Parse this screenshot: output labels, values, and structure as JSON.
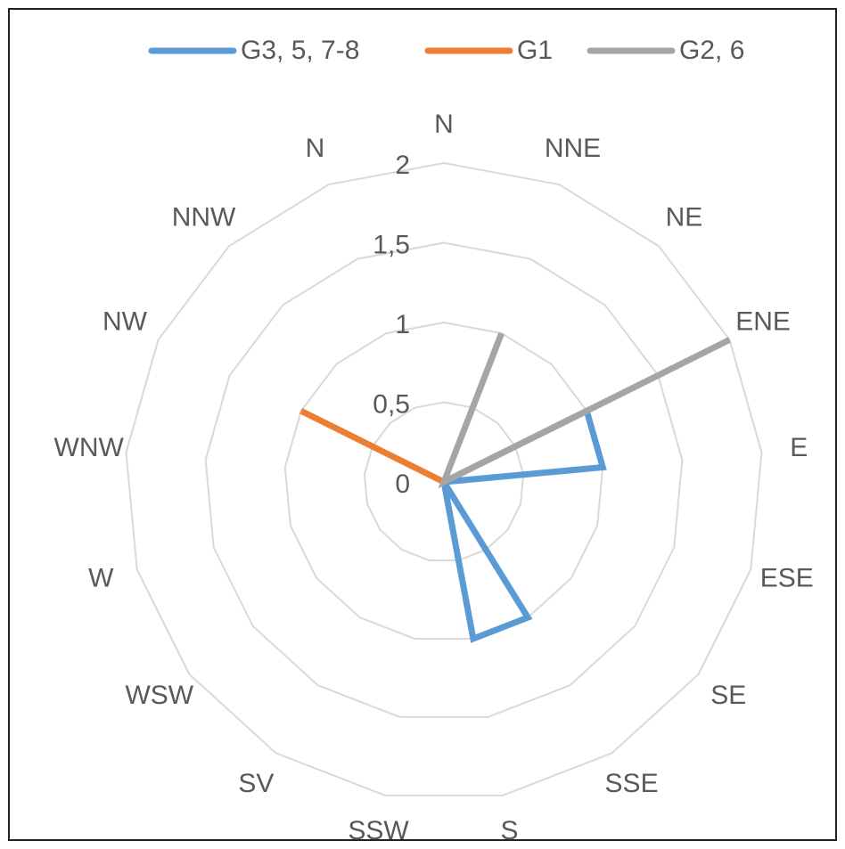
{
  "chart_data": {
    "type": "radar",
    "categories": [
      "N",
      "NNE",
      "NE",
      "ENE",
      "E",
      "ESE",
      "SE",
      "SSE",
      "S",
      "SSW",
      "SV",
      "WSW",
      "W",
      "WNW",
      "NW",
      "NNW",
      "N"
    ],
    "series": [
      {
        "name": "G3, 5, 7-8",
        "color": "#5b9bd5",
        "values": [
          0,
          0,
          0,
          1,
          1,
          0,
          0,
          1,
          1,
          0,
          0,
          0,
          0,
          0,
          0,
          0,
          0
        ]
      },
      {
        "name": "G1",
        "color": "#ed7d31",
        "values": [
          0,
          0,
          0,
          0,
          0,
          0,
          0,
          0,
          0,
          0,
          0,
          0,
          0,
          0,
          1,
          0,
          0
        ]
      },
      {
        "name": "G2, 6",
        "color": "#a5a5a5",
        "values": [
          0,
          1,
          0,
          2,
          0,
          0,
          0,
          0,
          0,
          0,
          0,
          0,
          0,
          0,
          0,
          0,
          0
        ]
      }
    ],
    "ylim": [
      0,
      2
    ],
    "yticks": [
      0,
      {
        "value": 0.5,
        "label": "0,5"
      },
      1,
      {
        "value": 1.5,
        "label": "1,5"
      },
      2
    ],
    "grid": true,
    "legend": "top"
  }
}
